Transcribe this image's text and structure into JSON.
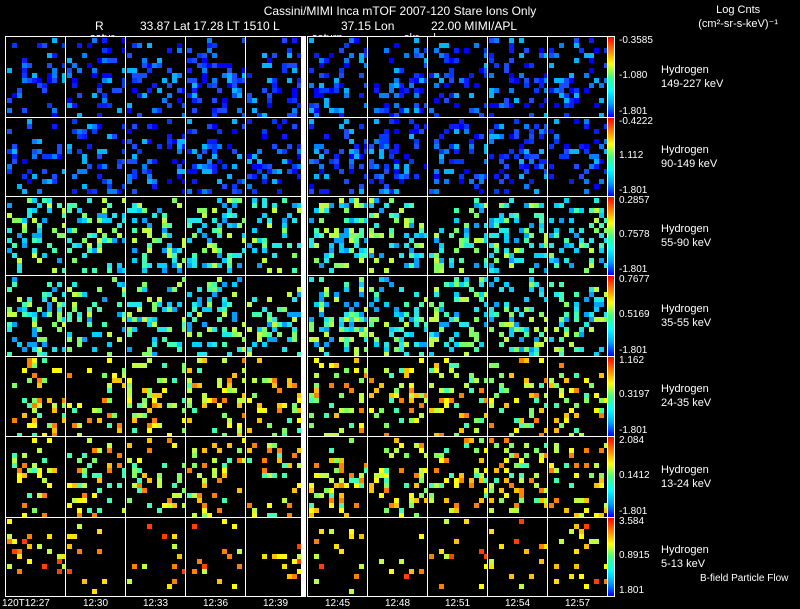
{
  "header": {
    "title": "Cassini/MIMI Inca mTOF  2007-120   Stare   Ions Only",
    "r_label": "R",
    "position": "33.87 Lat 17.28 LT 1510 L",
    "lon": "37.15 Lon",
    "mimi": "22.00  MIMI/APL",
    "logcnts_line1": "Log Cnts",
    "logcnts_line2": "(cm²-sr-s-keV)⁻¹",
    "satur_left": "satur",
    "satur_mid": "saturn",
    "skr": "skr-→l"
  },
  "rows": [
    {
      "species": "Hydrogen",
      "energy": "149-227 keV",
      "cb_top": "-0.3585",
      "cb_mid": "-1.080",
      "cb_bot": "-1.801",
      "hue": "low"
    },
    {
      "species": "Hydrogen",
      "energy": "90-149 keV",
      "cb_top": "-0.4222",
      "cb_mid": "1.112",
      "cb_bot": "-1.801",
      "hue": "low"
    },
    {
      "species": "Hydrogen",
      "energy": "55-90 keV",
      "cb_top": "0.2857",
      "cb_mid": "0.7578",
      "cb_bot": "-1.801",
      "hue": "mid"
    },
    {
      "species": "Hydrogen",
      "energy": "35-55 keV",
      "cb_top": "0.7677",
      "cb_mid": "0.5169",
      "cb_bot": "-1.801",
      "hue": "mid"
    },
    {
      "species": "Hydrogen",
      "energy": "24-35 keV",
      "cb_top": "1.162",
      "cb_mid": "0.3197",
      "cb_bot": "-1.801",
      "hue": "high"
    },
    {
      "species": "Hydrogen",
      "energy": "13-24 keV",
      "cb_top": "2.084",
      "cb_mid": "0.1412",
      "cb_bot": "-1.801",
      "hue": "high"
    },
    {
      "species": "Hydrogen",
      "energy": "5-13 keV",
      "cb_top": "3.584",
      "cb_mid": "0.8915",
      "cb_bot": "1.801",
      "hue": "top"
    }
  ],
  "xticks": [
    "120T12:27",
    "12:30",
    "12:33",
    "12:36",
    "12:39",
    "12:45",
    "12:48",
    "12:51",
    "12:54",
    "12:57"
  ],
  "footer": {
    "bfield": "B-field Particle Flow"
  },
  "colors": {
    "background": "#000000",
    "grid": "#ffffff"
  }
}
